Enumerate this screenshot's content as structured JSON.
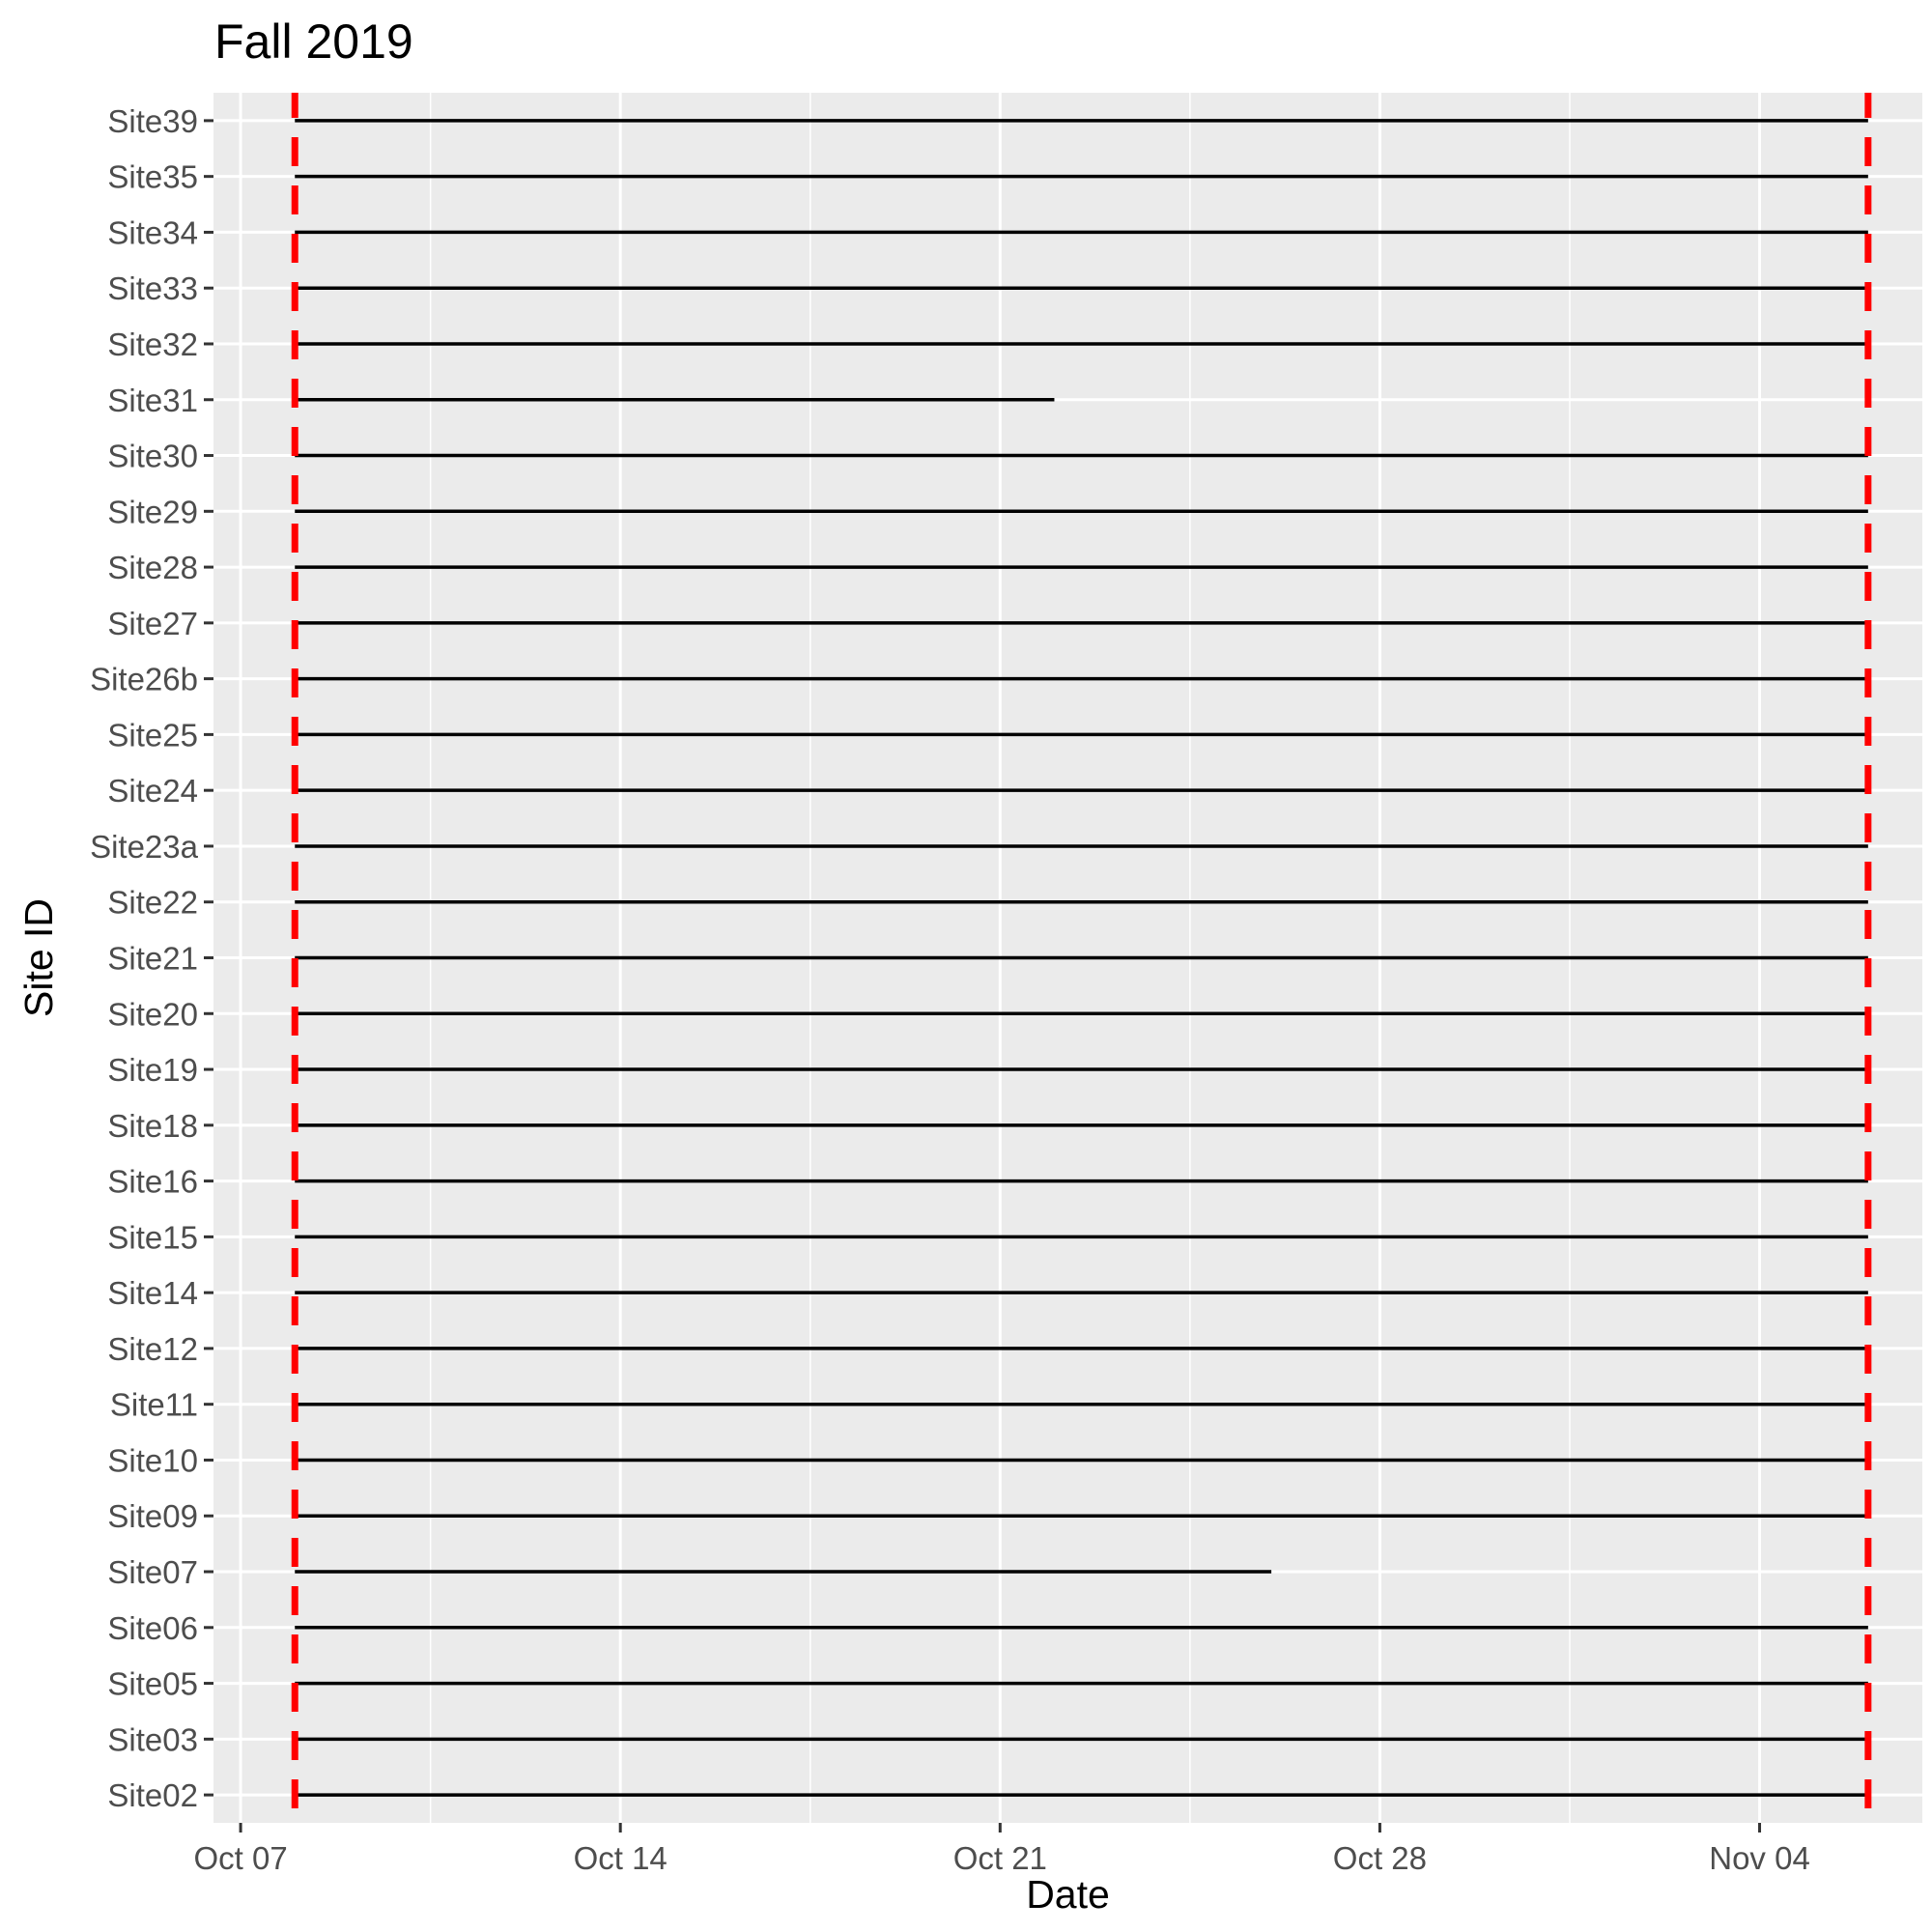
{
  "chart_data": {
    "type": "segment",
    "title": "Fall 2019",
    "xlabel": "Date",
    "ylabel": "Site ID",
    "x_ticks": [
      "Oct 07",
      "Oct 14",
      "Oct 21",
      "Oct 28",
      "Nov 04"
    ],
    "x_tick_dates": [
      "2019-10-07",
      "2019-10-14",
      "2019-10-21",
      "2019-10-28",
      "2019-11-04"
    ],
    "xlim": [
      "2019-10-06T12:00",
      "2019-11-07T00:00"
    ],
    "grid": true,
    "reference_lines": {
      "color": "#ff0000",
      "style": "dashed",
      "dates": [
        "2019-10-08",
        "2019-11-06"
      ]
    },
    "series": [
      {
        "site": "Site39",
        "start": "2019-10-08",
        "end": "2019-11-06"
      },
      {
        "site": "Site35",
        "start": "2019-10-08",
        "end": "2019-11-06"
      },
      {
        "site": "Site34",
        "start": "2019-10-08",
        "end": "2019-11-06"
      },
      {
        "site": "Site33",
        "start": "2019-10-08",
        "end": "2019-11-06"
      },
      {
        "site": "Site32",
        "start": "2019-10-08",
        "end": "2019-11-06"
      },
      {
        "site": "Site31",
        "start": "2019-10-08",
        "end": "2019-10-22"
      },
      {
        "site": "Site30",
        "start": "2019-10-08",
        "end": "2019-11-06"
      },
      {
        "site": "Site29",
        "start": "2019-10-08",
        "end": "2019-11-06"
      },
      {
        "site": "Site28",
        "start": "2019-10-08",
        "end": "2019-11-06"
      },
      {
        "site": "Site27",
        "start": "2019-10-08",
        "end": "2019-11-06"
      },
      {
        "site": "Site26b",
        "start": "2019-10-08",
        "end": "2019-11-06"
      },
      {
        "site": "Site25",
        "start": "2019-10-08",
        "end": "2019-11-06"
      },
      {
        "site": "Site24",
        "start": "2019-10-08",
        "end": "2019-11-06"
      },
      {
        "site": "Site23a",
        "start": "2019-10-08",
        "end": "2019-11-06"
      },
      {
        "site": "Site22",
        "start": "2019-10-08",
        "end": "2019-11-06"
      },
      {
        "site": "Site21",
        "start": "2019-10-08",
        "end": "2019-11-06"
      },
      {
        "site": "Site20",
        "start": "2019-10-08",
        "end": "2019-11-06"
      },
      {
        "site": "Site19",
        "start": "2019-10-08",
        "end": "2019-11-06"
      },
      {
        "site": "Site18",
        "start": "2019-10-08",
        "end": "2019-11-06"
      },
      {
        "site": "Site16",
        "start": "2019-10-08",
        "end": "2019-11-06"
      },
      {
        "site": "Site15",
        "start": "2019-10-08",
        "end": "2019-11-06"
      },
      {
        "site": "Site14",
        "start": "2019-10-08",
        "end": "2019-11-06"
      },
      {
        "site": "Site12",
        "start": "2019-10-08",
        "end": "2019-11-06"
      },
      {
        "site": "Site11",
        "start": "2019-10-08",
        "end": "2019-11-06"
      },
      {
        "site": "Site10",
        "start": "2019-10-08",
        "end": "2019-11-06"
      },
      {
        "site": "Site09",
        "start": "2019-10-08",
        "end": "2019-11-06"
      },
      {
        "site": "Site07",
        "start": "2019-10-08",
        "end": "2019-10-26"
      },
      {
        "site": "Site06",
        "start": "2019-10-08",
        "end": "2019-11-06"
      },
      {
        "site": "Site05",
        "start": "2019-10-08",
        "end": "2019-11-06"
      },
      {
        "site": "Site03",
        "start": "2019-10-08",
        "end": "2019-11-06"
      },
      {
        "site": "Site02",
        "start": "2019-10-08",
        "end": "2019-11-06"
      }
    ],
    "colors": {
      "panel": "#ebebeb",
      "grid": "#ffffff",
      "segment": "#000000",
      "axis_text": "#4d4d4d"
    }
  }
}
